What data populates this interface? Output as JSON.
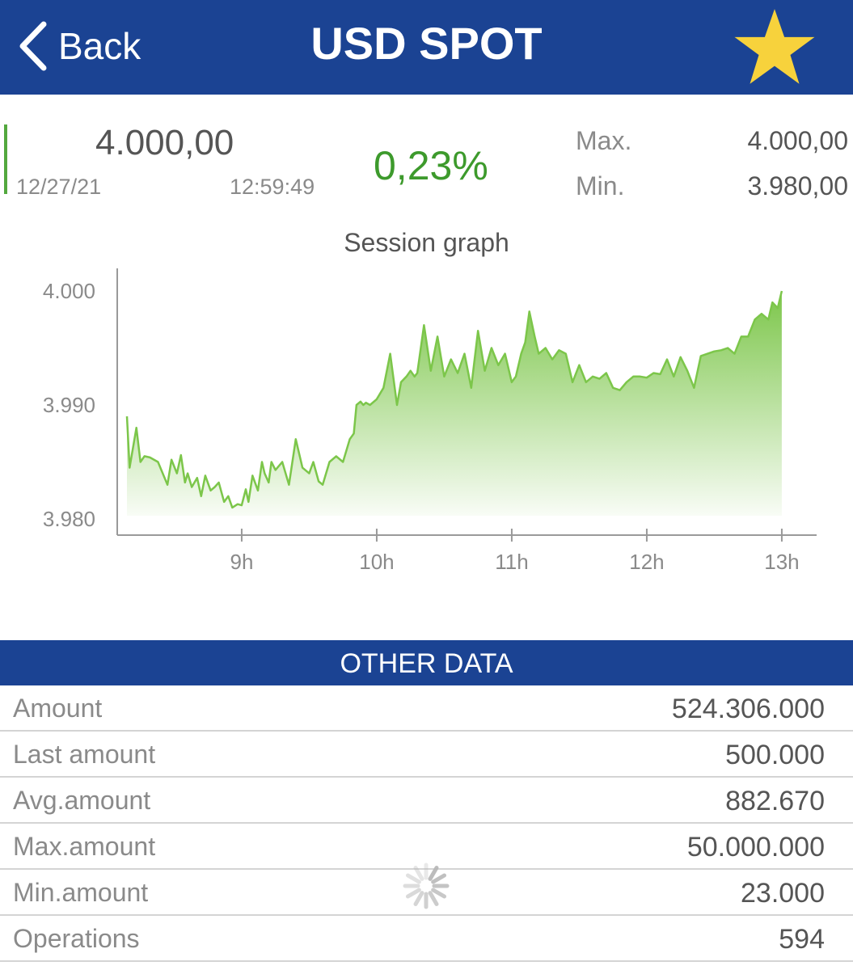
{
  "header": {
    "back_label": "Back",
    "title": "USD SPOT",
    "favorite_icon": "star-icon",
    "favorite_color": "#f7d23c",
    "bar_color": "#1b4393"
  },
  "quote": {
    "price": "4.000,00",
    "date": "12/27/21",
    "time": "12:59:49",
    "change": "0,23%",
    "change_color": "#3d9a2c",
    "max_label": "Max.",
    "max_value": "4.000,00",
    "min_label": "Min.",
    "min_value": "3.980,00"
  },
  "graph": {
    "title": "Session graph"
  },
  "chart_data": {
    "type": "area",
    "title": "Session graph",
    "xlabel": "",
    "ylabel": "",
    "x_ticks": [
      "9h",
      "10h",
      "11h",
      "12h",
      "13h"
    ],
    "y_ticks": [
      "4.000",
      "3.990",
      "3.980"
    ],
    "y_tick_values": [
      4000,
      3990,
      3980
    ],
    "ylim": [
      3980,
      4000
    ],
    "xlim": [
      8.15,
      13.33
    ],
    "grid": false,
    "legend": "none",
    "line_color": "#7cc64a",
    "series": [
      {
        "x": [
          8.15,
          8.17,
          8.22,
          8.25,
          8.28,
          8.32,
          8.38,
          8.45,
          8.48,
          8.52,
          8.55,
          8.58,
          8.6,
          8.63,
          8.67,
          8.7,
          8.73,
          8.77,
          8.8,
          8.83,
          8.87,
          8.9,
          8.93,
          8.97,
          9.0,
          9.03,
          9.05,
          9.08,
          9.12,
          9.15,
          9.17,
          9.2,
          9.22,
          9.25,
          9.3,
          9.35,
          9.4,
          9.45,
          9.5,
          9.53,
          9.57,
          9.6,
          9.65,
          9.7,
          9.75,
          9.8,
          9.83,
          9.85,
          9.88,
          9.9,
          9.92,
          9.95,
          10.0,
          10.05,
          10.1,
          10.15,
          10.18,
          10.22,
          10.25,
          10.28,
          10.3,
          10.35,
          10.4,
          10.45,
          10.5,
          10.55,
          10.6,
          10.65,
          10.7,
          10.75,
          10.8,
          10.85,
          10.9,
          10.95,
          11.0,
          11.03,
          11.07,
          11.1,
          11.13,
          11.17,
          11.2,
          11.25,
          11.3,
          11.35,
          11.4,
          11.45,
          11.5,
          11.55,
          11.6,
          11.65,
          11.7,
          11.75,
          11.8,
          11.85,
          11.9,
          11.95,
          12.0,
          12.05,
          12.1,
          12.15,
          12.2,
          12.25,
          12.3,
          12.35,
          12.4,
          12.45,
          12.5,
          12.55,
          12.6,
          12.65,
          12.7,
          12.75,
          12.8,
          12.85,
          12.9,
          12.93,
          12.97,
          13.0
        ],
        "y": [
          3989.0,
          3984.5,
          3988.0,
          3985.0,
          3985.5,
          3985.4,
          3985.0,
          3983.0,
          3985.2,
          3984.0,
          3985.6,
          3983.2,
          3984.0,
          3982.8,
          3983.6,
          3982.0,
          3983.8,
          3982.5,
          3982.8,
          3983.2,
          3981.5,
          3982.0,
          3981.0,
          3981.3,
          3981.2,
          3982.6,
          3981.5,
          3983.8,
          3982.5,
          3985.0,
          3984.0,
          3983.2,
          3985.0,
          3984.3,
          3985.0,
          3983.0,
          3987.0,
          3984.5,
          3984.0,
          3985.0,
          3983.3,
          3983.0,
          3985.0,
          3985.5,
          3985.0,
          3987.0,
          3987.5,
          3990.0,
          3990.3,
          3990.0,
          3990.2,
          3990.0,
          3990.5,
          3991.5,
          3994.5,
          3990.0,
          3992.0,
          3992.5,
          3993.0,
          3992.5,
          3992.8,
          3997.0,
          3993.0,
          3996.0,
          3992.5,
          3994.0,
          3992.8,
          3994.5,
          3991.5,
          3996.5,
          3993.0,
          3995.0,
          3993.5,
          3994.5,
          3992.0,
          3992.5,
          3994.5,
          3995.5,
          3998.2,
          3996.0,
          3994.5,
          3995.0,
          3994.0,
          3994.8,
          3994.5,
          3992.0,
          3993.5,
          3992.0,
          3992.5,
          3992.3,
          3992.8,
          3991.5,
          3991.3,
          3992.0,
          3992.5,
          3992.5,
          3992.4,
          3992.8,
          3992.7,
          3994.0,
          3992.5,
          3994.2,
          3993.0,
          3991.5,
          3994.3,
          3994.5,
          3994.7,
          3994.8,
          3995.0,
          3994.5,
          3996.0,
          3996.0,
          3997.5,
          3998.0,
          3997.5,
          3999.0,
          3998.5,
          4000.0
        ]
      }
    ]
  },
  "other_data": {
    "header": "OTHER DATA",
    "rows": [
      {
        "label": "Amount",
        "value": "524.306.000"
      },
      {
        "label": "Last amount",
        "value": "500.000"
      },
      {
        "label": "Avg.amount",
        "value": "882.670"
      },
      {
        "label": "Max.amount",
        "value": "50.000.000"
      },
      {
        "label": "Min.amount",
        "value": "23.000"
      },
      {
        "label": "Operations",
        "value": "594"
      }
    ]
  },
  "loading_icon": "spinner-icon"
}
